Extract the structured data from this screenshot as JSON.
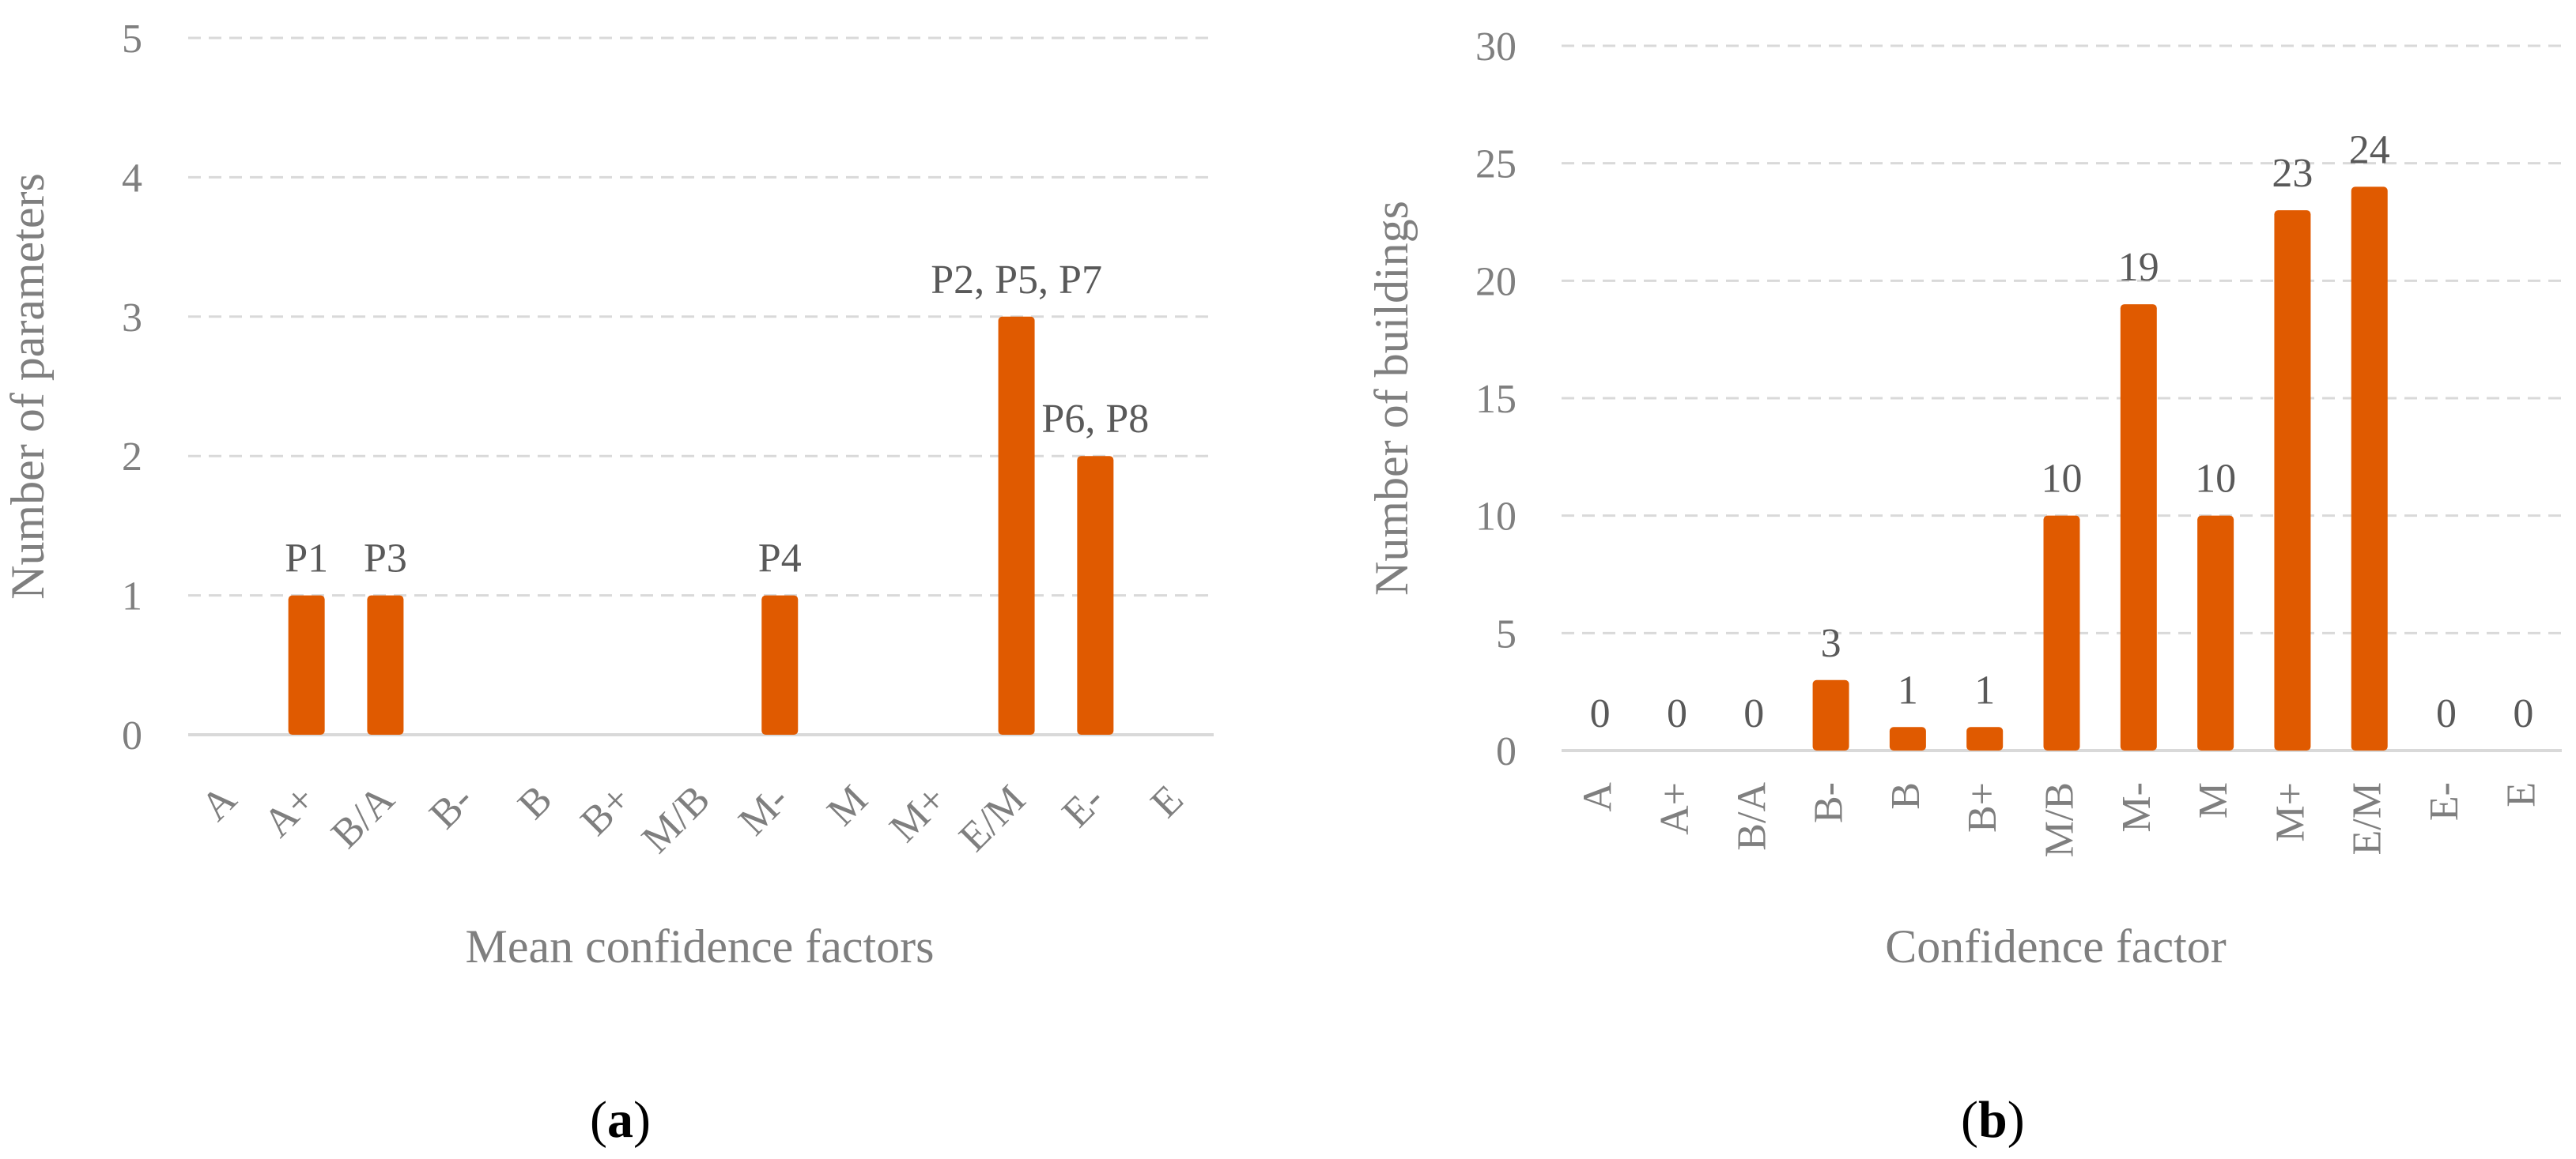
{
  "chart_data": [
    {
      "type": "bar",
      "panel": "a",
      "categories": [
        "A",
        "A+",
        "B/A",
        "B-",
        "B",
        "B+",
        "M/B",
        "M-",
        "M",
        "M+",
        "E/M",
        "E-",
        "E"
      ],
      "values": [
        0,
        1,
        1,
        0,
        0,
        0,
        0,
        1,
        0,
        0,
        3,
        2,
        0
      ],
      "data_labels": [
        "",
        "P1",
        "P3",
        "",
        "",
        "",
        "",
        "P4",
        "",
        "",
        "P2, P5, P7",
        "P6, P8",
        ""
      ],
      "xlabel": "Mean confidence factors",
      "ylabel": "Number of parameters",
      "ylim": [
        0,
        5
      ],
      "yticks": [
        0,
        1,
        2,
        3,
        4,
        5
      ],
      "grid": true,
      "bar_color": "#E05A00"
    },
    {
      "type": "bar",
      "panel": "b",
      "categories": [
        "A",
        "A+",
        "B/A",
        "B-",
        "B",
        "B+",
        "M/B",
        "M-",
        "M",
        "M+",
        "E/M",
        "E-",
        "E"
      ],
      "values": [
        0,
        0,
        0,
        3,
        1,
        1,
        10,
        19,
        10,
        23,
        24,
        0,
        0
      ],
      "data_labels": [
        "0",
        "0",
        "0",
        "3",
        "1",
        "1",
        "10",
        "19",
        "10",
        "23",
        "24",
        "0",
        "0"
      ],
      "xlabel": "Confidence factor",
      "ylabel": "Number of buildings",
      "ylim": [
        0,
        30
      ],
      "yticks": [
        0,
        5,
        10,
        15,
        20,
        25,
        30
      ],
      "grid": true,
      "bar_color": "#E05A00"
    }
  ],
  "panel_labels": [
    "(a)",
    "(b)"
  ]
}
